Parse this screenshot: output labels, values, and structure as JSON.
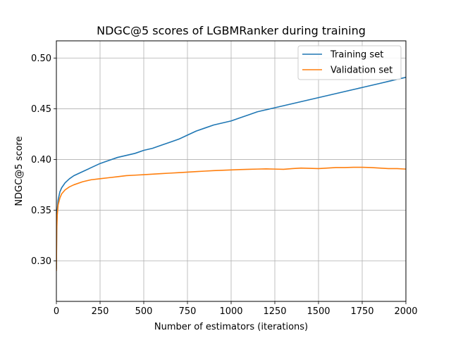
{
  "chart_data": {
    "type": "line",
    "title": "NDGC@5 scores of LGBMRanker during training",
    "xlabel": "Number of estimators (iterations)",
    "ylabel": "NDGC@5 score",
    "xlim": [
      0,
      2000
    ],
    "ylim": [
      0.26,
      0.517
    ],
    "xticks": [
      0,
      250,
      500,
      750,
      1000,
      1250,
      1500,
      1750,
      2000
    ],
    "yticks": [
      0.3,
      0.35,
      0.4,
      0.45,
      0.5
    ],
    "xtick_labels": [
      "0",
      "250",
      "500",
      "750",
      "1000",
      "1250",
      "1500",
      "1750",
      "2000"
    ],
    "ytick_labels": [
      "0.30",
      "0.35",
      "0.40",
      "0.45",
      "0.50"
    ],
    "grid": true,
    "legend_position": "top-right",
    "series": [
      {
        "name": "Training set",
        "color": "#1f77b4",
        "x": [
          0,
          2,
          5,
          10,
          20,
          30,
          50,
          75,
          100,
          150,
          200,
          250,
          300,
          350,
          400,
          450,
          500,
          550,
          600,
          650,
          700,
          750,
          800,
          850,
          900,
          950,
          1000,
          1050,
          1100,
          1150,
          1200,
          1250,
          1300,
          1350,
          1400,
          1450,
          1500,
          1550,
          1600,
          1650,
          1700,
          1750,
          1800,
          1850,
          1900,
          1950,
          2000
        ],
        "y": [
          0.292,
          0.335,
          0.35,
          0.36,
          0.368,
          0.372,
          0.377,
          0.381,
          0.384,
          0.388,
          0.392,
          0.396,
          0.399,
          0.402,
          0.404,
          0.406,
          0.409,
          0.411,
          0.414,
          0.417,
          0.42,
          0.424,
          0.428,
          0.431,
          0.434,
          0.436,
          0.438,
          0.441,
          0.444,
          0.447,
          0.449,
          0.451,
          0.453,
          0.455,
          0.457,
          0.459,
          0.461,
          0.463,
          0.465,
          0.467,
          0.469,
          0.471,
          0.473,
          0.475,
          0.477,
          0.479,
          0.481
        ]
      },
      {
        "name": "Validation set",
        "color": "#ff7f0e",
        "x": [
          0,
          2,
          5,
          10,
          20,
          30,
          50,
          75,
          100,
          150,
          200,
          250,
          300,
          350,
          400,
          450,
          500,
          550,
          600,
          650,
          700,
          750,
          800,
          850,
          900,
          950,
          1000,
          1050,
          1100,
          1150,
          1200,
          1250,
          1300,
          1350,
          1400,
          1450,
          1500,
          1550,
          1600,
          1650,
          1700,
          1750,
          1800,
          1850,
          1900,
          1950,
          2000
        ],
        "y": [
          0.29,
          0.33,
          0.345,
          0.355,
          0.362,
          0.366,
          0.37,
          0.373,
          0.375,
          0.378,
          0.38,
          0.381,
          0.382,
          0.383,
          0.384,
          0.3845,
          0.385,
          0.3855,
          0.386,
          0.3865,
          0.387,
          0.3875,
          0.388,
          0.3885,
          0.389,
          0.3893,
          0.3897,
          0.39,
          0.3903,
          0.3905,
          0.3907,
          0.3905,
          0.3903,
          0.391,
          0.3915,
          0.3912,
          0.391,
          0.3915,
          0.392,
          0.392,
          0.3923,
          0.3923,
          0.392,
          0.3915,
          0.391,
          0.391,
          0.3905
        ]
      }
    ]
  }
}
